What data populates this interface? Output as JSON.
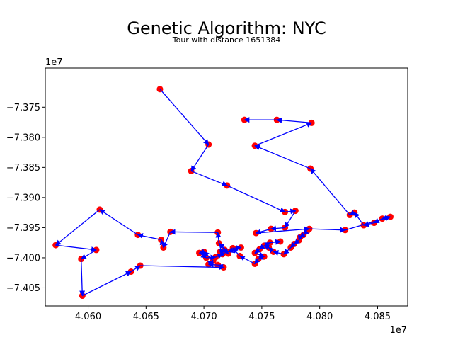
{
  "chart_data": {
    "type": "scatter",
    "title": "Genetic Algorithm: NYC",
    "subtitle": "Tour with distance 1651384",
    "x_offset_label": "1e7",
    "y_offset_label": "1e7",
    "xlim": [
      4.0563,
      4.0876
    ],
    "ylim": [
      -7.408,
      -7.3685
    ],
    "x_ticks": [
      4.06,
      4.065,
      4.07,
      4.075,
      4.08,
      4.085
    ],
    "x_tick_labels": [
      "4.060",
      "4.065",
      "4.070",
      "4.075",
      "4.080",
      "4.085"
    ],
    "y_ticks": [
      -7.375,
      -7.38,
      -7.385,
      -7.39,
      -7.395,
      -7.4,
      -7.405
    ],
    "y_tick_labels": [
      "−7.375",
      "−7.380",
      "−7.385",
      "−7.390",
      "−7.395",
      "−7.400",
      "−7.405"
    ],
    "point_color": "#ff0000",
    "path_color": "#0000ff",
    "points": [
      [
        4.0662,
        -7.372
      ],
      [
        4.0704,
        -7.3812
      ],
      [
        4.0689,
        -7.3856
      ],
      [
        4.072,
        -7.388
      ],
      [
        4.077,
        -7.3924
      ],
      [
        4.0779,
        -7.3922
      ],
      [
        4.077,
        -7.395
      ],
      [
        4.0758,
        -7.3952
      ],
      [
        4.0745,
        -7.3959
      ],
      [
        4.0791,
        -7.3952
      ],
      [
        4.0822,
        -7.3954
      ],
      [
        4.0861,
        -7.3932
      ],
      [
        4.0854,
        -7.3935
      ],
      [
        4.0847,
        -7.3942
      ],
      [
        4.0838,
        -7.3946
      ],
      [
        4.083,
        -7.3925
      ],
      [
        4.0826,
        -7.3929
      ],
      [
        4.0792,
        -7.3852
      ],
      [
        4.0744,
        -7.3814
      ],
      [
        4.0793,
        -7.3776
      ],
      [
        4.0763,
        -7.3771
      ],
      [
        4.0735,
        -7.3771
      ],
      [
        4.0789,
        -7.3956
      ],
      [
        4.0786,
        -7.3962
      ],
      [
        4.0783,
        -7.3966
      ],
      [
        4.0782,
        -7.3971
      ],
      [
        4.0778,
        -7.3977
      ],
      [
        4.0775,
        -7.3983
      ],
      [
        4.0769,
        -7.3994
      ],
      [
        4.076,
        -7.399
      ],
      [
        4.0756,
        -7.3983
      ],
      [
        4.0752,
        -7.398
      ],
      [
        4.0757,
        -7.3975
      ],
      [
        4.0766,
        -7.3973
      ],
      [
        4.0748,
        -7.3986
      ],
      [
        4.0744,
        -7.3992
      ],
      [
        4.0752,
        -7.3998
      ],
      [
        4.0747,
        -7.4002
      ],
      [
        4.0744,
        -7.401
      ],
      [
        4.0731,
        -7.3997
      ],
      [
        4.0725,
        -7.3984
      ],
      [
        4.0732,
        -7.3983
      ],
      [
        4.0721,
        -7.399
      ],
      [
        4.0713,
        -7.3976
      ],
      [
        4.0712,
        -7.3958
      ],
      [
        4.0671,
        -7.3957
      ],
      [
        4.0665,
        -7.3983
      ],
      [
        4.0663,
        -7.397
      ],
      [
        4.0643,
        -7.3962
      ],
      [
        4.061,
        -7.392
      ],
      [
        4.0572,
        -7.3979
      ],
      [
        4.0607,
        -7.3987
      ],
      [
        4.0594,
        -7.4002
      ],
      [
        4.0595,
        -7.4063
      ],
      [
        4.0637,
        -7.4023
      ],
      [
        4.0645,
        -7.4013
      ],
      [
        4.0717,
        -7.4016
      ],
      [
        4.0712,
        -7.4012
      ],
      [
        4.0704,
        -7.4011
      ],
      [
        4.0708,
        -7.4005
      ],
      [
        4.07,
        -7.399
      ],
      [
        4.0696,
        -7.3992
      ],
      [
        4.0702,
        -7.4
      ],
      [
        4.071,
        -7.3999
      ],
      [
        4.0716,
        -7.3994
      ],
      [
        4.0714,
        -7.399
      ],
      [
        4.0718,
        -7.3987
      ],
      [
        4.0721,
        -7.3993
      ]
    ],
    "tour": [
      [
        0,
        1
      ],
      [
        1,
        2
      ],
      [
        2,
        3
      ],
      [
        3,
        4
      ],
      [
        4,
        5
      ],
      [
        5,
        6
      ],
      [
        6,
        7
      ],
      [
        7,
        8
      ],
      [
        8,
        9
      ],
      [
        9,
        10
      ],
      [
        10,
        11
      ],
      [
        11,
        12
      ],
      [
        12,
        13
      ],
      [
        13,
        14
      ],
      [
        14,
        15
      ],
      [
        15,
        16
      ],
      [
        16,
        17
      ],
      [
        17,
        18
      ],
      [
        18,
        19
      ],
      [
        19,
        20
      ],
      [
        20,
        21
      ],
      [
        22,
        23
      ],
      [
        23,
        24
      ],
      [
        24,
        25
      ],
      [
        25,
        26
      ],
      [
        26,
        27
      ],
      [
        27,
        28
      ],
      [
        28,
        29
      ],
      [
        29,
        30
      ],
      [
        30,
        31
      ],
      [
        31,
        32
      ],
      [
        32,
        33
      ],
      [
        31,
        34
      ],
      [
        34,
        35
      ],
      [
        35,
        36
      ],
      [
        36,
        37
      ],
      [
        37,
        38
      ],
      [
        38,
        39
      ],
      [
        39,
        40
      ],
      [
        40,
        41
      ],
      [
        41,
        42
      ],
      [
        42,
        43
      ],
      [
        43,
        44
      ],
      [
        44,
        45
      ],
      [
        45,
        46
      ],
      [
        46,
        47
      ],
      [
        47,
        48
      ],
      [
        48,
        49
      ],
      [
        49,
        50
      ],
      [
        50,
        51
      ],
      [
        51,
        52
      ],
      [
        52,
        53
      ],
      [
        53,
        54
      ],
      [
        54,
        55
      ],
      [
        55,
        56
      ],
      [
        56,
        57
      ],
      [
        57,
        58
      ],
      [
        58,
        59
      ],
      [
        59,
        60
      ],
      [
        60,
        61
      ],
      [
        61,
        62
      ],
      [
        62,
        63
      ],
      [
        63,
        64
      ],
      [
        64,
        65
      ],
      [
        65,
        66
      ],
      [
        66,
        67
      ],
      [
        67,
        43
      ]
    ]
  }
}
